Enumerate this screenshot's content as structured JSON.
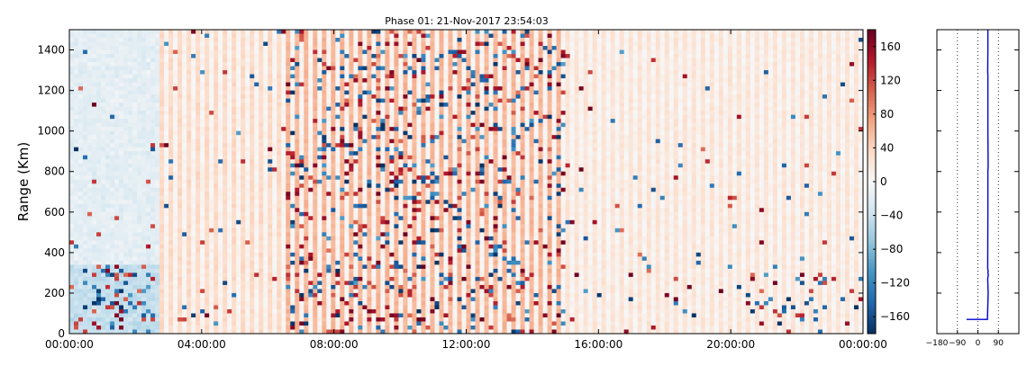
{
  "chart_data": [
    {
      "type": "heatmap",
      "title": "Phase 01: 21-Nov-2017 23:54:03",
      "xlabel": "",
      "ylabel": "Range (Km)",
      "xlim": [
        "00:00:00",
        "24:00:00"
      ],
      "ylim": [
        0,
        1500
      ],
      "x_tick_labels": [
        "00:00:00",
        "04:00:00",
        "08:00:00",
        "12:00:00",
        "16:00:00",
        "20:00:00",
        "00:00:00"
      ],
      "y_tick_labels": [
        "0",
        "200",
        "400",
        "600",
        "800",
        "1000",
        "1200",
        "1400"
      ],
      "colormap": "RdBu_r",
      "colorbar": {
        "range": [
          -180,
          180
        ],
        "tick_labels": [
          "−160",
          "−120",
          "−80",
          "−40",
          "0",
          "40",
          "80",
          "120",
          "160"
        ],
        "tick_values": [
          -160,
          -120,
          -80,
          -40,
          0,
          40,
          80,
          120,
          160
        ]
      },
      "description_regions": [
        {
          "time_range": [
            "00:00:00",
            "02:40:00"
          ],
          "value_level": -15
        },
        {
          "time_range": [
            "02:40:00",
            "06:30:00"
          ],
          "value_level": 35
        },
        {
          "time_range": [
            "06:30:00",
            "15:00:00"
          ],
          "value_level": 60
        },
        {
          "time_range": [
            "15:00:00",
            "24:00:00"
          ],
          "value_level": 25
        }
      ]
    },
    {
      "type": "line",
      "xlim": [
        -180,
        180
      ],
      "ylim": [
        0,
        1500
      ],
      "x_tick_labels": [
        "−180",
        "−90",
        "0",
        "90"
      ],
      "x_ticks": [
        -180,
        -90,
        0,
        90
      ],
      "grid": "vertical dotted",
      "series": [
        {
          "color": "#0000cc",
          "x": [
            -50,
            42,
            45,
            43,
            46,
            44,
            45,
            43,
            44,
            44,
            45,
            44,
            44,
            44,
            43,
            44,
            44
          ],
          "y": [
            70,
            70,
            200,
            270,
            290,
            300,
            310,
            320,
            600,
            800,
            830,
            1000,
            1200,
            1280,
            1290,
            1400,
            1500
          ]
        }
      ]
    }
  ],
  "colors": {
    "blue_dark": "#053061",
    "red_dark": "#67001f",
    "line": "#0000cc"
  }
}
